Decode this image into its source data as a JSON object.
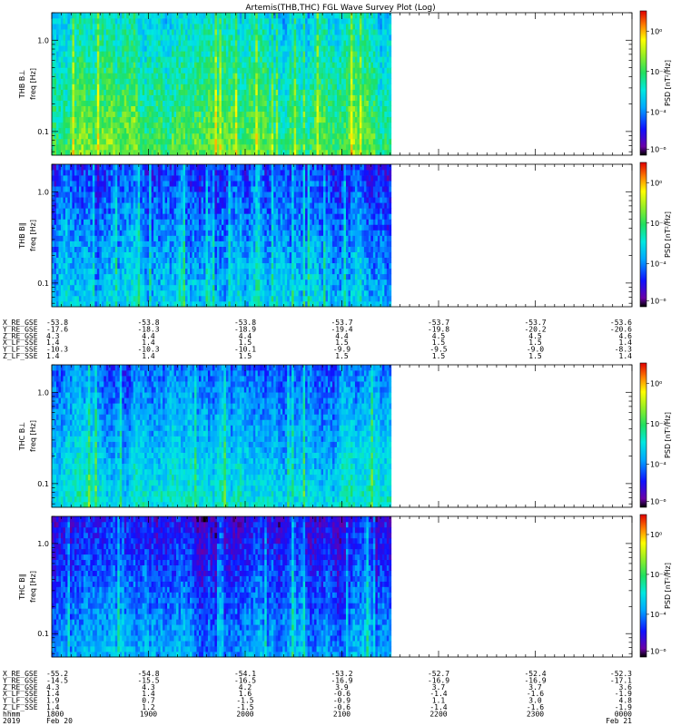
{
  "title": "Artemis(THB,THC) FGL Wave Survey Plot (Log)",
  "chart_data": [
    {
      "type": "heatmap",
      "panel_label": "THB B⊥",
      "ylabel": "freq [Hz]",
      "yscale": "log",
      "ylim": [
        0.055,
        2.0
      ],
      "yticks": [
        "1.0",
        "0.1"
      ],
      "colorbar_label": "PSD [nT²/Hz]",
      "colorbar_ticks": [
        "10⁰",
        "10⁻²",
        "10⁻⁴",
        "10⁻⁶"
      ],
      "data_coverage": 0.585,
      "mean_log_psd": -2.4,
      "variability": 1.4,
      "seed": 11
    },
    {
      "type": "heatmap",
      "panel_label": "THB B∥",
      "ylabel": "freq [Hz]",
      "yscale": "log",
      "ylim": [
        0.055,
        2.0
      ],
      "yticks": [
        "1.0",
        "0.1"
      ],
      "colorbar_label": "PSD [nT²/Hz]",
      "colorbar_ticks": [
        "10⁰",
        "10⁻²",
        "10⁻⁴",
        "10⁻⁶"
      ],
      "data_coverage": 0.585,
      "mean_log_psd": -4.2,
      "variability": 1.5,
      "seed": 23
    },
    {
      "type": "heatmap",
      "panel_label": "THC B⊥",
      "ylabel": "freq [Hz]",
      "yscale": "log",
      "ylim": [
        0.055,
        2.0
      ],
      "yticks": [
        "1.0",
        "0.1"
      ],
      "colorbar_label": "PSD [nT²/Hz]",
      "colorbar_ticks": [
        "10⁰",
        "10⁻²",
        "10⁻⁴",
        "10⁻⁶"
      ],
      "data_coverage": 0.585,
      "mean_log_psd": -3.7,
      "variability": 1.3,
      "seed": 37
    },
    {
      "type": "heatmap",
      "panel_label": "THC B∥",
      "ylabel": "freq [Hz]",
      "yscale": "log",
      "ylim": [
        0.055,
        2.0
      ],
      "yticks": [
        "1.0",
        "0.1"
      ],
      "colorbar_label": "PSD [nT²/Hz]",
      "colorbar_ticks": [
        "10⁰",
        "10⁻²",
        "10⁻⁴",
        "10⁻⁶"
      ],
      "data_coverage": 0.585,
      "mean_log_psd": -4.8,
      "variability": 1.3,
      "seed": 53
    }
  ],
  "ephemeris_b": {
    "rows": [
      {
        "label": "X_RE_GSE",
        "values": [
          "-53.8",
          "-53.8",
          "-53.8",
          "-53.7",
          "-53.7",
          "-53.7",
          "-53.6"
        ]
      },
      {
        "label": "Y_RE_GSE",
        "values": [
          "-17.6",
          "-18.3",
          "-18.9",
          "-19.4",
          "-19.8",
          "-20.2",
          "-20.6"
        ]
      },
      {
        "label": "Z_RE_GSE",
        "values": [
          "4.3",
          "4.4",
          "4.4",
          "4.4",
          "4.5",
          "4.5",
          "4.6"
        ]
      },
      {
        "label": "X_LF_SSE",
        "values": [
          "1.4",
          "1.4",
          "1.5",
          "1.5",
          "1.5",
          "1.5",
          "1.4"
        ]
      },
      {
        "label": "Y_LF_SSE",
        "values": [
          "-10.3",
          "-10.3",
          "-10.1",
          "-9.9",
          "-9.5",
          "-9.0",
          "-8.3"
        ]
      },
      {
        "label": "Z_LF_SSE",
        "values": [
          "1.4",
          "1.4",
          "1.5",
          "1.5",
          "1.5",
          "1.5",
          "1.4"
        ]
      }
    ]
  },
  "ephemeris_c": {
    "rows": [
      {
        "label": "X_RE_GSE",
        "values": [
          "-55.2",
          "-54.8",
          "-54.1",
          "-53.2",
          "-52.7",
          "-52.4",
          "-52.3"
        ]
      },
      {
        "label": "Y_RE_GSE",
        "values": [
          "-14.5",
          "-15.5",
          "-16.5",
          "-16.9",
          "-16.9",
          "-16.9",
          "-17.1"
        ]
      },
      {
        "label": "Z_RE_GSE",
        "values": [
          "4.3",
          "4.3",
          "4.2",
          "3.9",
          "3.7",
          "3.7",
          "3.6"
        ]
      },
      {
        "label": "X_LF_SSE",
        "values": [
          "1.4",
          "1.4",
          "1.6",
          "-0.6",
          "-1.4",
          "-1.6",
          "-1.9"
        ]
      },
      {
        "label": "Y_LF_SSE",
        "values": [
          "1.9",
          "0.7",
          "-1.5",
          "-0.9",
          "1.1",
          "3.0",
          "4.8"
        ]
      },
      {
        "label": "Z_LF_SSE",
        "values": [
          "1.4",
          "1.2",
          "-1.5",
          "-0.6",
          "-1.4",
          "-1.6",
          "-1.9"
        ]
      }
    ]
  },
  "time_axis": {
    "row_label": "hhmm",
    "ticks": [
      "1800",
      "1900",
      "2000",
      "2100",
      "2200",
      "2300",
      "0000"
    ],
    "year": "2019",
    "date_start": "Feb 20",
    "date_end": "Feb 21"
  }
}
